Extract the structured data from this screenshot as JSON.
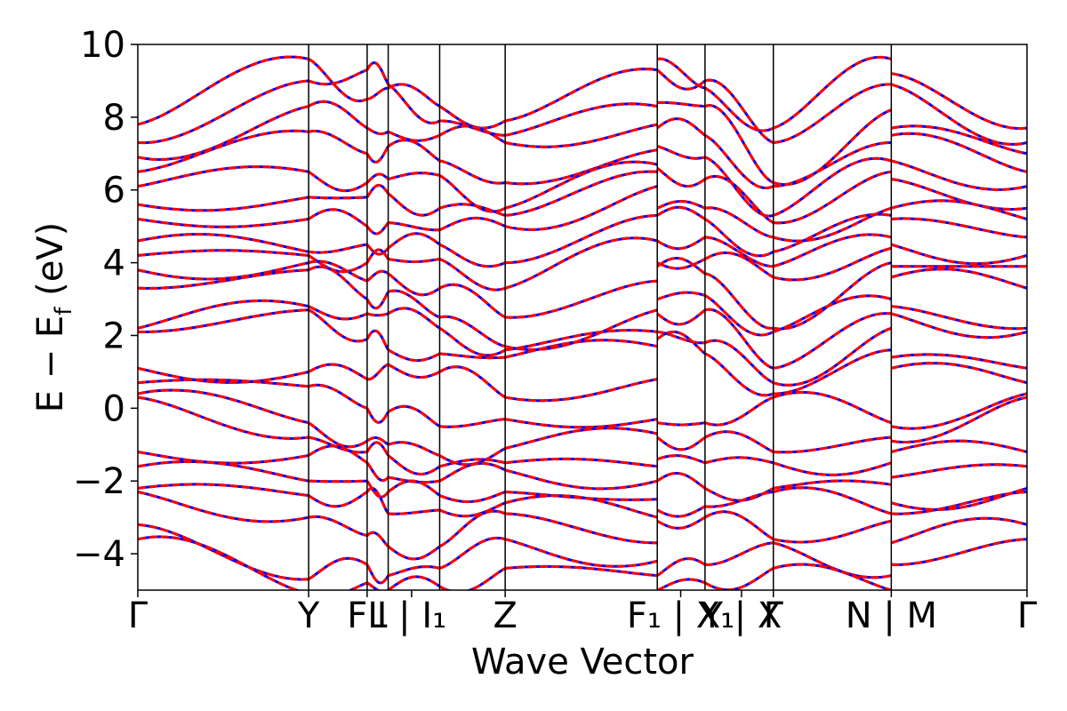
{
  "chart_data": {
    "type": "line",
    "title": "",
    "xlabel": "Wave Vector",
    "ylabel": "E − E",
    "ylabel_sub": "f",
    "ylabel_unit": " (eV)",
    "ylim": [
      -5,
      10
    ],
    "yticks": [
      {
        "value": 10,
        "label": "10"
      },
      {
        "value": 8,
        "label": "8"
      },
      {
        "value": 6,
        "label": "6"
      },
      {
        "value": 4,
        "label": "4"
      },
      {
        "value": 2,
        "label": "2"
      },
      {
        "value": 0,
        "label": "0"
      },
      {
        "value": -2,
        "label": "−2"
      },
      {
        "value": -4,
        "label": "−4"
      }
    ],
    "x_range": [
      0,
      1
    ],
    "kpoint_boundaries": [
      0.365,
      0.49,
      0.535,
      0.645,
      0.785,
      1.11,
      1.212,
      1.358,
      1.61,
      1.9
    ],
    "kpoint_labels": [
      {
        "x": 0.0,
        "label": "Γ"
      },
      {
        "x": 0.365,
        "label": "Y"
      },
      {
        "x": 0.49,
        "label": "FL"
      },
      {
        "x": 0.585,
        "label": "I | I₁"
      },
      {
        "x": 0.785,
        "label": "Z"
      },
      {
        "x": 1.16,
        "label": "F₁ | X₁"
      },
      {
        "x": 1.29,
        "label": "Y | X"
      },
      {
        "x": 1.358,
        "label": "Γ"
      },
      {
        "x": 1.61,
        "label": "N | M"
      },
      {
        "x": 1.9,
        "label": "Γ"
      }
    ],
    "series_styles": {
      "solid_color": "#ff0000",
      "dashed_color": "#0000ff"
    },
    "segments": [
      {
        "x0": 0.0,
        "x1": 0.365,
        "start": [
          7.8,
          7.3,
          6.9,
          6.5,
          6.1,
          5.6,
          5.2,
          4.6,
          4.2,
          3.8,
          3.3,
          2.2,
          2.1,
          1.1,
          0.7,
          0.4,
          0.3,
          -1.2,
          -1.6,
          -2.2,
          -2.3,
          -3.2,
          -3.6
        ],
        "end": [
          9.6,
          9.0,
          8.3,
          7.6,
          6.5,
          5.8,
          5.2,
          4.3,
          4.2,
          4.0,
          3.8,
          2.8,
          2.7,
          1.0,
          0.6,
          -0.4,
          -0.8,
          -1.3,
          -2.0,
          -2.4,
          -3.0,
          -4.7,
          -5.1
        ]
      },
      {
        "x0": 0.365,
        "x1": 0.49,
        "start": [
          9.6,
          9.0,
          8.3,
          7.6,
          6.5,
          5.8,
          5.2,
          4.3,
          4.2,
          4.0,
          3.8,
          2.8,
          2.7,
          1.0,
          0.6,
          -0.4,
          -0.8,
          -1.3,
          -2.0,
          -2.4,
          -3.0,
          -4.7,
          -5.1
        ],
        "end": [
          8.5,
          9.3,
          7.7,
          7.0,
          6.2,
          5.8,
          5.0,
          4.5,
          4.0,
          3.5,
          3.0,
          2.6,
          1.9,
          0.8,
          0.0,
          -0.9,
          -1.2,
          -1.5,
          -2.0,
          -2.3,
          -3.5,
          -4.3,
          -4.8
        ]
      },
      {
        "x0": 0.49,
        "x1": 0.535,
        "start": [
          8.5,
          9.3,
          7.7,
          7.0,
          6.2,
          5.8,
          5.0,
          4.5,
          4.0,
          3.5,
          3.0,
          2.6,
          1.9,
          0.8,
          0.0,
          -0.9,
          -1.2,
          -1.5,
          -2.0,
          -2.3,
          -3.5,
          -4.3,
          -4.8
        ],
        "end": [
          8.8,
          8.9,
          7.6,
          7.2,
          6.3,
          5.9,
          5.1,
          4.4,
          4.1,
          3.7,
          3.2,
          2.6,
          1.6,
          1.2,
          -0.1,
          -1.0,
          -1.3,
          -1.9,
          -2.3,
          -2.9,
          -3.8,
          -4.6,
          -5.0
        ]
      },
      {
        "x0": 0.535,
        "x1": 0.645,
        "start": [
          8.8,
          8.9,
          7.6,
          7.2,
          6.3,
          5.9,
          5.1,
          4.4,
          4.1,
          3.7,
          3.2,
          2.6,
          1.6,
          1.2,
          -0.1,
          -1.0,
          -1.3,
          -1.9,
          -2.3,
          -2.9,
          -3.8,
          -4.6,
          -5.0
        ],
        "end": [
          8.3,
          7.9,
          7.5,
          6.8,
          6.4,
          5.5,
          4.9,
          4.5,
          4.1,
          3.3,
          2.5,
          2.2,
          1.5,
          1.0,
          -0.5,
          -1.3,
          -1.6,
          -2.0,
          -2.4,
          -2.8,
          -3.8,
          -4.4,
          -4.9
        ]
      },
      {
        "x0": 0.645,
        "x1": 0.785,
        "start": [
          8.3,
          7.9,
          7.5,
          6.8,
          6.4,
          5.5,
          4.9,
          4.5,
          4.1,
          3.3,
          2.5,
          2.2,
          1.5,
          1.0,
          -0.5,
          -1.3,
          -1.6,
          -2.0,
          -2.4,
          -2.8,
          -3.8,
          -4.4,
          -4.9
        ],
        "end": [
          7.9,
          7.5,
          7.3,
          6.2,
          5.5,
          5.3,
          5.0,
          4.0,
          3.3,
          2.5,
          1.7,
          1.6,
          1.4,
          0.3,
          -0.3,
          -1.1,
          -1.5,
          -1.7,
          -2.3,
          -2.6,
          -2.9,
          -3.6,
          -4.4
        ]
      },
      {
        "x0": 0.785,
        "x1": 1.11,
        "start": [
          7.9,
          7.5,
          7.3,
          6.2,
          5.5,
          5.3,
          5.0,
          4.0,
          3.3,
          2.5,
          1.7,
          1.6,
          1.4,
          0.3,
          -0.3,
          -1.1,
          -1.5,
          -1.7,
          -2.3,
          -2.6,
          -2.9,
          -3.6,
          -4.4
        ],
        "end": [
          9.3,
          8.3,
          7.8,
          7.1,
          6.7,
          6.5,
          6.1,
          5.3,
          4.6,
          3.5,
          2.7,
          2.1,
          1.7,
          0.8,
          -0.3,
          -0.7,
          -1.6,
          -2.0,
          -2.5,
          -3.0,
          -3.7,
          -4.2,
          -4.6
        ]
      },
      {
        "x0": 1.11,
        "x1": 1.212,
        "start": [
          9.6,
          9.3,
          8.4,
          7.7,
          7.2,
          6.6,
          5.5,
          5.3,
          4.6,
          4.0,
          3.9,
          3.0,
          2.6,
          2.1,
          1.9,
          -0.4,
          -0.8,
          -1.4,
          -2.0,
          -2.8,
          -3.1,
          -4.6,
          -5.0
        ],
        "end": [
          8.8,
          9.0,
          8.3,
          7.5,
          6.9,
          6.3,
          5.5,
          5.2,
          4.7,
          4.1,
          3.7,
          3.1,
          2.7,
          1.8,
          1.5,
          -0.4,
          -0.8,
          -1.5,
          -2.2,
          -2.7,
          -3.0,
          -4.3,
          -4.8
        ]
      },
      {
        "x0": 1.212,
        "x1": 1.358,
        "start": [
          8.8,
          9.0,
          8.3,
          7.5,
          6.9,
          6.3,
          5.5,
          5.2,
          4.7,
          4.1,
          3.7,
          3.1,
          2.7,
          1.8,
          1.5,
          -0.4,
          -0.8,
          -1.5,
          -2.2,
          -2.7,
          -3.0,
          -4.3,
          -4.8
        ],
        "end": [
          7.7,
          7.3,
          6.2,
          6.1,
          5.3,
          5.1,
          4.7,
          4.3,
          3.9,
          3.6,
          2.2,
          2.1,
          1.1,
          0.7,
          0.4,
          0.3,
          -1.2,
          -1.5,
          -2.2,
          -2.3,
          -3.6,
          -3.7,
          -4.4
        ]
      },
      {
        "x0": 1.358,
        "x1": 1.61,
        "start": [
          7.7,
          7.3,
          6.2,
          6.1,
          5.3,
          5.1,
          4.7,
          4.3,
          3.9,
          3.6,
          2.2,
          2.1,
          1.1,
          0.7,
          0.4,
          0.3,
          -1.2,
          -1.5,
          -2.2,
          -2.3,
          -3.6,
          -3.7,
          -4.4
        ],
        "end": [
          9.6,
          8.9,
          8.2,
          7.3,
          6.8,
          6.5,
          5.5,
          5.3,
          4.7,
          4.4,
          4.0,
          3.0,
          2.6,
          2.2,
          1.6,
          -0.4,
          -0.8,
          -1.5,
          -2.1,
          -2.9,
          -3.1,
          -4.6,
          -5.0
        ]
      },
      {
        "x0": 1.61,
        "x1": 1.9,
        "start": [
          9.2,
          8.9,
          7.7,
          7.5,
          6.8,
          6.3,
          5.5,
          5.2,
          4.5,
          3.9,
          3.6,
          2.8,
          2.6,
          1.4,
          1.1,
          -0.5,
          -0.9,
          -1.2,
          -1.9,
          -2.6,
          -2.9,
          -3.7,
          -4.3
        ],
        "end": [
          7.7,
          7.3,
          7.0,
          6.5,
          6.1,
          5.5,
          5.2,
          4.7,
          4.2,
          3.9,
          3.3,
          2.2,
          2.1,
          1.1,
          0.7,
          0.4,
          0.3,
          -1.2,
          -1.6,
          -2.2,
          -2.3,
          -3.2,
          -3.6
        ]
      }
    ]
  }
}
